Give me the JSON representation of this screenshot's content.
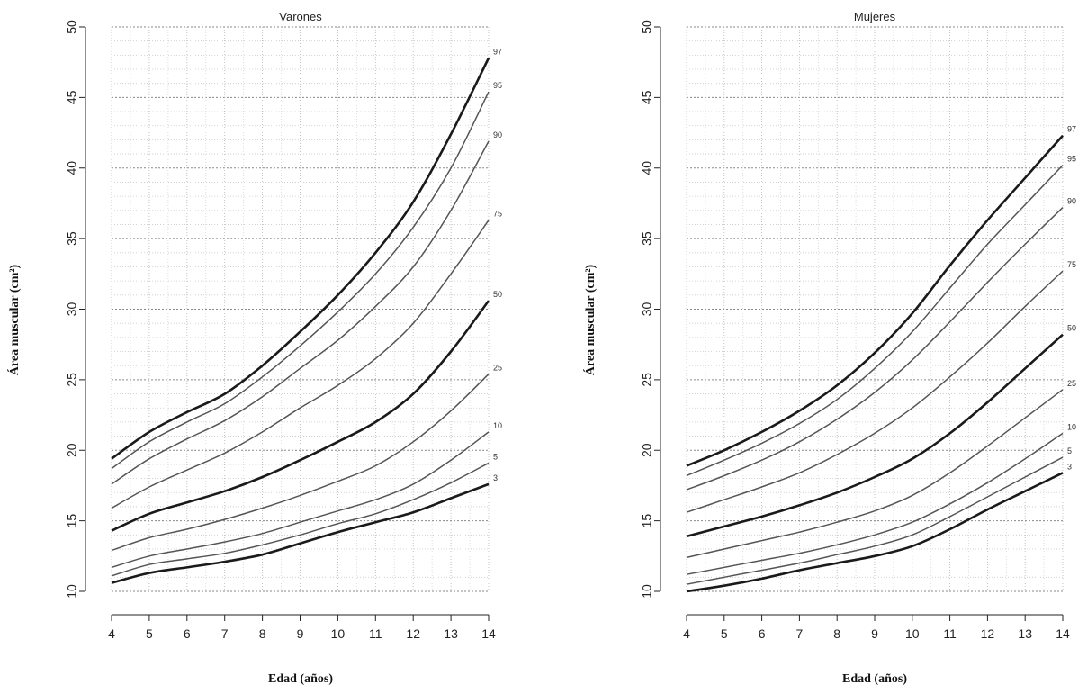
{
  "chart_data": [
    {
      "type": "line",
      "title": "Varones",
      "xlabel": "Edad (años)",
      "ylabel": "Área muscular (cm²)",
      "xlim": [
        4,
        14
      ],
      "ylim": [
        10,
        50
      ],
      "x_ticks": [
        4,
        5,
        6,
        7,
        8,
        9,
        10,
        11,
        12,
        13,
        14
      ],
      "y_ticks": [
        10,
        15,
        20,
        25,
        30,
        35,
        40,
        45,
        50
      ],
      "grid": true,
      "x": [
        4,
        5,
        6,
        7,
        8,
        9,
        10,
        11,
        12,
        13,
        14
      ],
      "series": [
        {
          "name": "97",
          "bold": true,
          "values": [
            19.4,
            21.3,
            22.7,
            24.0,
            26.0,
            28.4,
            31.0,
            34.0,
            37.6,
            42.4,
            47.8
          ]
        },
        {
          "name": "95",
          "bold": false,
          "values": [
            18.7,
            20.6,
            22.0,
            23.3,
            25.2,
            27.4,
            29.8,
            32.5,
            35.8,
            40.0,
            45.4
          ]
        },
        {
          "name": "90",
          "bold": false,
          "values": [
            17.6,
            19.4,
            20.8,
            22.1,
            23.8,
            25.8,
            27.8,
            30.2,
            33.0,
            37.0,
            41.9
          ]
        },
        {
          "name": "75",
          "bold": false,
          "values": [
            15.9,
            17.4,
            18.6,
            19.8,
            21.3,
            23.0,
            24.6,
            26.5,
            29.0,
            32.5,
            36.3
          ]
        },
        {
          "name": "50",
          "bold": true,
          "values": [
            14.3,
            15.5,
            16.3,
            17.1,
            18.1,
            19.3,
            20.6,
            22.0,
            24.0,
            27.0,
            30.6
          ]
        },
        {
          "name": "25",
          "bold": false,
          "values": [
            12.9,
            13.8,
            14.4,
            15.1,
            15.9,
            16.8,
            17.8,
            18.9,
            20.6,
            22.8,
            25.4
          ]
        },
        {
          "name": "10",
          "bold": false,
          "values": [
            11.7,
            12.5,
            13.0,
            13.5,
            14.1,
            14.9,
            15.7,
            16.5,
            17.6,
            19.3,
            21.3
          ]
        },
        {
          "name": "5",
          "bold": false,
          "values": [
            11.1,
            11.9,
            12.3,
            12.7,
            13.3,
            14.0,
            14.8,
            15.5,
            16.5,
            17.7,
            19.1
          ]
        },
        {
          "name": "3",
          "bold": true,
          "values": [
            10.6,
            11.3,
            11.7,
            12.1,
            12.6,
            13.4,
            14.2,
            14.9,
            15.6,
            16.6,
            17.6
          ]
        }
      ]
    },
    {
      "type": "line",
      "title": "Mujeres",
      "xlabel": "Edad (años)",
      "ylabel": "Área muscular (cm²)",
      "xlim": [
        4,
        14
      ],
      "ylim": [
        10,
        50
      ],
      "x_ticks": [
        4,
        5,
        6,
        7,
        8,
        9,
        10,
        11,
        12,
        13,
        14
      ],
      "y_ticks": [
        10,
        15,
        20,
        25,
        30,
        35,
        40,
        45,
        50
      ],
      "grid": true,
      "x": [
        4,
        5,
        6,
        7,
        8,
        9,
        10,
        11,
        12,
        13,
        14
      ],
      "series": [
        {
          "name": "97",
          "bold": true,
          "values": [
            18.9,
            20.0,
            21.3,
            22.8,
            24.6,
            26.9,
            29.7,
            33.1,
            36.3,
            39.3,
            42.3
          ]
        },
        {
          "name": "95",
          "bold": false,
          "values": [
            18.2,
            19.3,
            20.5,
            21.9,
            23.6,
            25.8,
            28.4,
            31.5,
            34.6,
            37.4,
            40.2
          ]
        },
        {
          "name": "90",
          "bold": false,
          "values": [
            17.2,
            18.2,
            19.3,
            20.6,
            22.2,
            24.1,
            26.4,
            29.1,
            31.9,
            34.6,
            37.2
          ]
        },
        {
          "name": "75",
          "bold": false,
          "values": [
            15.6,
            16.5,
            17.4,
            18.4,
            19.7,
            21.2,
            23.0,
            25.2,
            27.6,
            30.2,
            32.7
          ]
        },
        {
          "name": "50",
          "bold": true,
          "values": [
            13.9,
            14.6,
            15.3,
            16.1,
            17.0,
            18.1,
            19.4,
            21.2,
            23.4,
            25.8,
            28.2
          ]
        },
        {
          "name": "25",
          "bold": false,
          "values": [
            12.4,
            13.0,
            13.6,
            14.2,
            14.9,
            15.7,
            16.8,
            18.4,
            20.3,
            22.3,
            24.3
          ]
        },
        {
          "name": "10",
          "bold": false,
          "values": [
            11.2,
            11.7,
            12.2,
            12.7,
            13.3,
            14.0,
            14.9,
            16.2,
            17.7,
            19.4,
            21.2
          ]
        },
        {
          "name": "5",
          "bold": false,
          "values": [
            10.5,
            11.0,
            11.5,
            12.0,
            12.6,
            13.2,
            14.0,
            15.3,
            16.7,
            18.1,
            19.5
          ]
        },
        {
          "name": "3",
          "bold": true,
          "values": [
            10.0,
            10.4,
            10.9,
            11.5,
            12.0,
            12.5,
            13.2,
            14.4,
            15.8,
            17.1,
            18.4
          ]
        }
      ]
    }
  ]
}
